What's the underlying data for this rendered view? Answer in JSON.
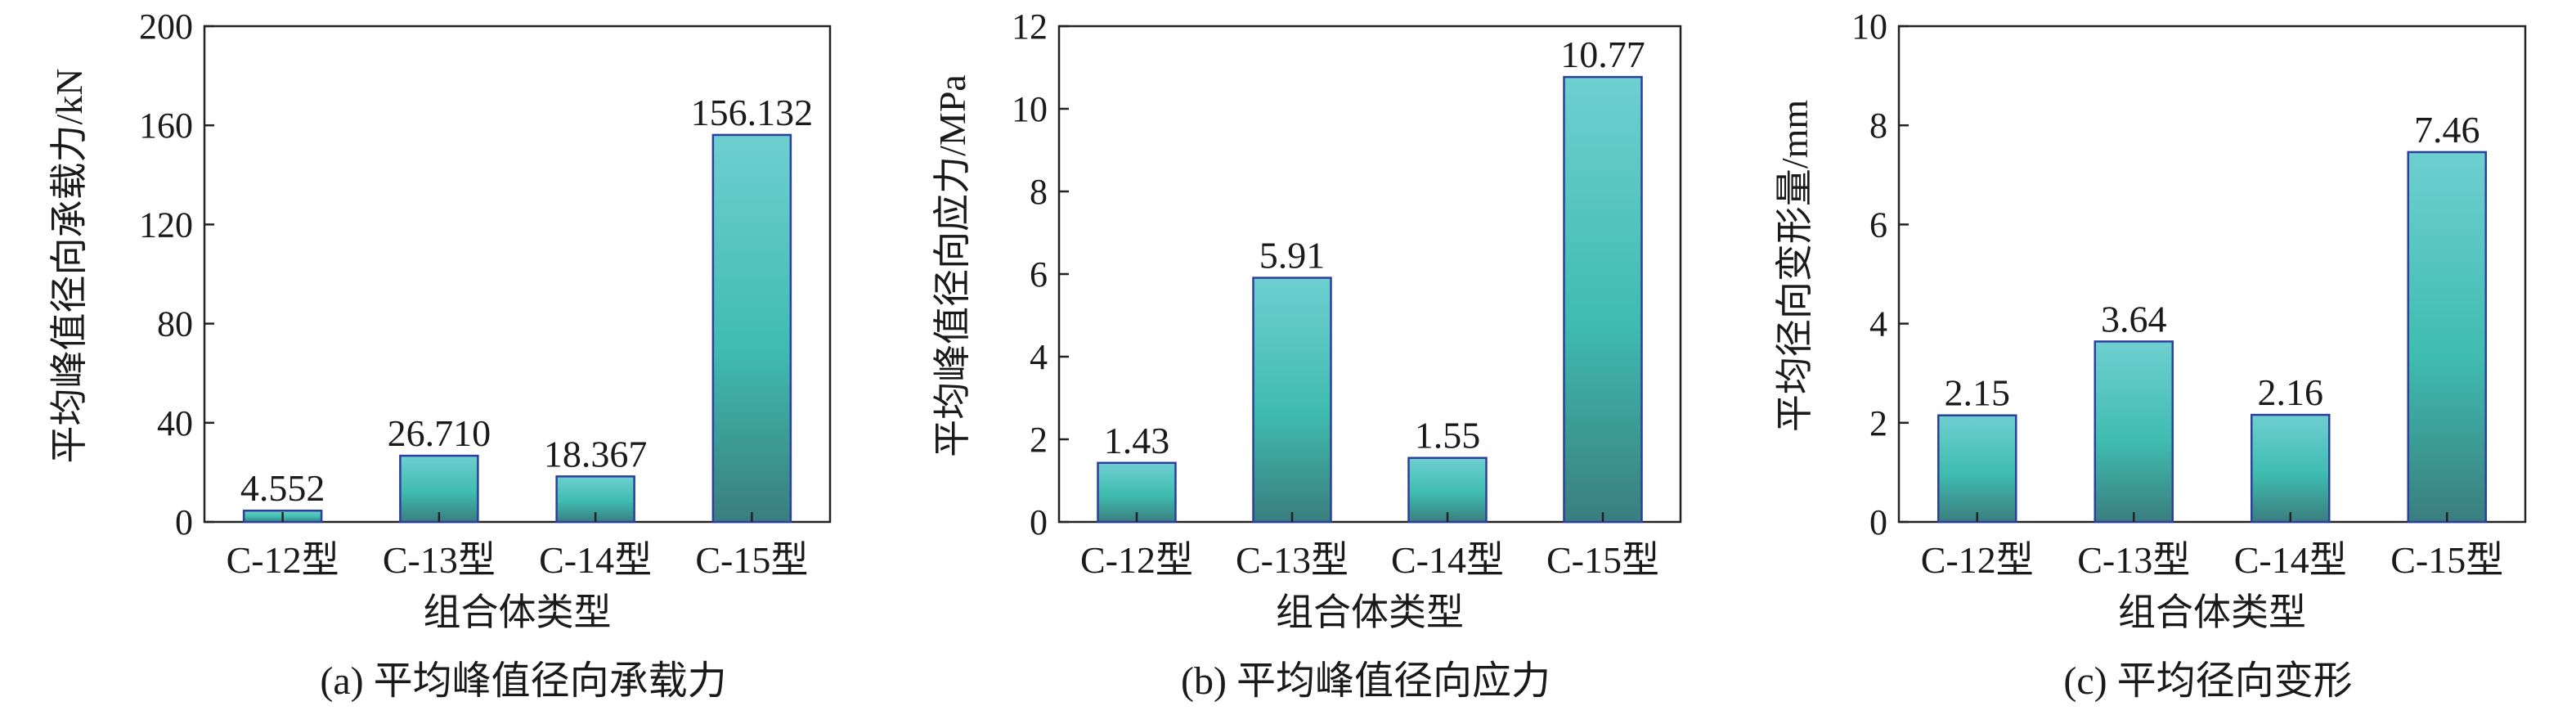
{
  "bar_colors": {
    "top": "#6fcfd0",
    "mid": "#3fbcb0",
    "bottom": "#3a7e7e",
    "edge": "#2b3f9e"
  },
  "chart_data": [
    {
      "type": "bar",
      "caption": "(a) 平均峰值径向承载力",
      "xlabel": "组合体类型",
      "ylabel": "平均峰值径向承载力/kN",
      "categories": [
        "C-12型",
        "C-13型",
        "C-14型",
        "C-15型"
      ],
      "values": [
        4.552,
        26.71,
        18.367,
        156.132
      ],
      "value_labels": [
        "4.552",
        "26.710",
        "18.367",
        "156.132"
      ],
      "ylim": [
        0,
        200
      ],
      "yticks": [
        "0",
        "40",
        "80",
        "120",
        "160",
        "200"
      ]
    },
    {
      "type": "bar",
      "caption": "(b) 平均峰值径向应力",
      "xlabel": "组合体类型",
      "ylabel": "平均峰值径向应力/MPa",
      "categories": [
        "C-12型",
        "C-13型",
        "C-14型",
        "C-15型"
      ],
      "values": [
        1.43,
        5.91,
        1.55,
        10.77
      ],
      "value_labels": [
        "1.43",
        "5.91",
        "1.55",
        "10.77"
      ],
      "ylim": [
        0,
        12
      ],
      "yticks": [
        "0",
        "2",
        "4",
        "6",
        "8",
        "10",
        "12"
      ]
    },
    {
      "type": "bar",
      "caption": "(c) 平均径向变形",
      "xlabel": "组合体类型",
      "ylabel": "平均径向变形量/mm",
      "categories": [
        "C-12型",
        "C-13型",
        "C-14型",
        "C-15型"
      ],
      "values": [
        2.15,
        3.64,
        2.16,
        7.46
      ],
      "value_labels": [
        "2.15",
        "3.64",
        "2.16",
        "7.46"
      ],
      "ylim": [
        0,
        10
      ],
      "yticks": [
        "0",
        "2",
        "4",
        "6",
        "8",
        "10"
      ]
    }
  ]
}
